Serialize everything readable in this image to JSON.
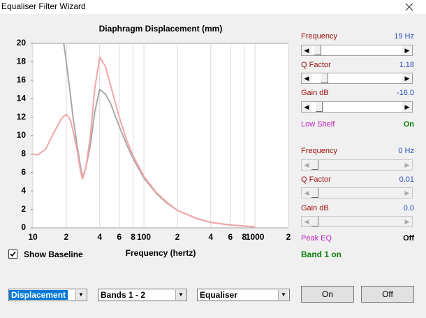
{
  "window": {
    "title": "Equaliser Filter Wizard"
  },
  "chart_data": {
    "type": "line",
    "title": "Diaphragm Displacement (mm)",
    "xlabel": "Frequency (hertz)",
    "xscale": "log",
    "grid": true,
    "x": [
      10,
      11,
      13,
      15,
      18,
      19,
      20,
      21,
      22,
      23,
      25,
      27,
      28,
      30,
      33,
      36,
      40,
      45,
      50,
      60,
      70,
      80,
      100,
      130,
      160,
      200,
      300,
      400,
      600,
      1000
    ],
    "series": [
      {
        "color": "#a8a8a8",
        "values": [
          null,
          null,
          null,
          null,
          null,
          20,
          18,
          16,
          14,
          12,
          9,
          6.5,
          5.5,
          6.5,
          9,
          12.5,
          15,
          14.5,
          13.5,
          11,
          9,
          7.5,
          5.4,
          3.7,
          2.7,
          1.9,
          1.0,
          0.6,
          0.3,
          0.1
        ]
      },
      {
        "color": "#f4a6a6",
        "values": [
          8.0,
          7.9,
          8.5,
          10,
          11.8,
          12.1,
          12.3,
          12.0,
          11.5,
          10.5,
          8.5,
          6.0,
          5.3,
          6.5,
          10,
          15,
          18.5,
          17.5,
          15.5,
          12,
          9.5,
          7.8,
          5.6,
          3.8,
          2.8,
          1.9,
          1.0,
          0.6,
          0.3,
          0.1
        ]
      }
    ],
    "xlim": [
      10,
      2000
    ],
    "ylim": [
      0,
      20
    ],
    "xticks": [
      10,
      {
        "value": 20,
        "label": "2"
      },
      {
        "value": 40,
        "label": "4"
      },
      {
        "value": 60,
        "label": "6"
      },
      {
        "value": 80,
        "label": "8"
      },
      100,
      {
        "value": 200,
        "label": "2"
      },
      {
        "value": 400,
        "label": "4"
      },
      {
        "value": 600,
        "label": "6"
      },
      {
        "value": 800,
        "label": "8"
      },
      1000,
      {
        "value": 2000,
        "label": "2"
      }
    ],
    "yticks": [
      0,
      2,
      4,
      6,
      8,
      10,
      12,
      14,
      16,
      18,
      20
    ]
  },
  "controls": {
    "band1": {
      "frequency": {
        "label": "Frequency",
        "value": "19 Hz"
      },
      "q_factor": {
        "label": "Q Factor",
        "value": "1.18"
      },
      "gain": {
        "label": "Gain  dB",
        "value": "-16.0"
      },
      "type": "Low Shelf",
      "state": "On"
    },
    "band2": {
      "frequency": {
        "label": "Frequency",
        "value": "0 Hz"
      },
      "q_factor": {
        "label": "Q Factor",
        "value": "0.01"
      },
      "gain": {
        "label": "Gain  dB",
        "value": "0.0"
      },
      "type": "Peak EQ",
      "state": "Off"
    },
    "band_status": "Band 1 on",
    "show_baseline": {
      "label": "Show Baseline",
      "checked": true
    },
    "dropdowns": [
      "Displacement",
      "Bands 1 - 2",
      "Equaliser"
    ],
    "buttons": [
      "On",
      "Off"
    ]
  }
}
